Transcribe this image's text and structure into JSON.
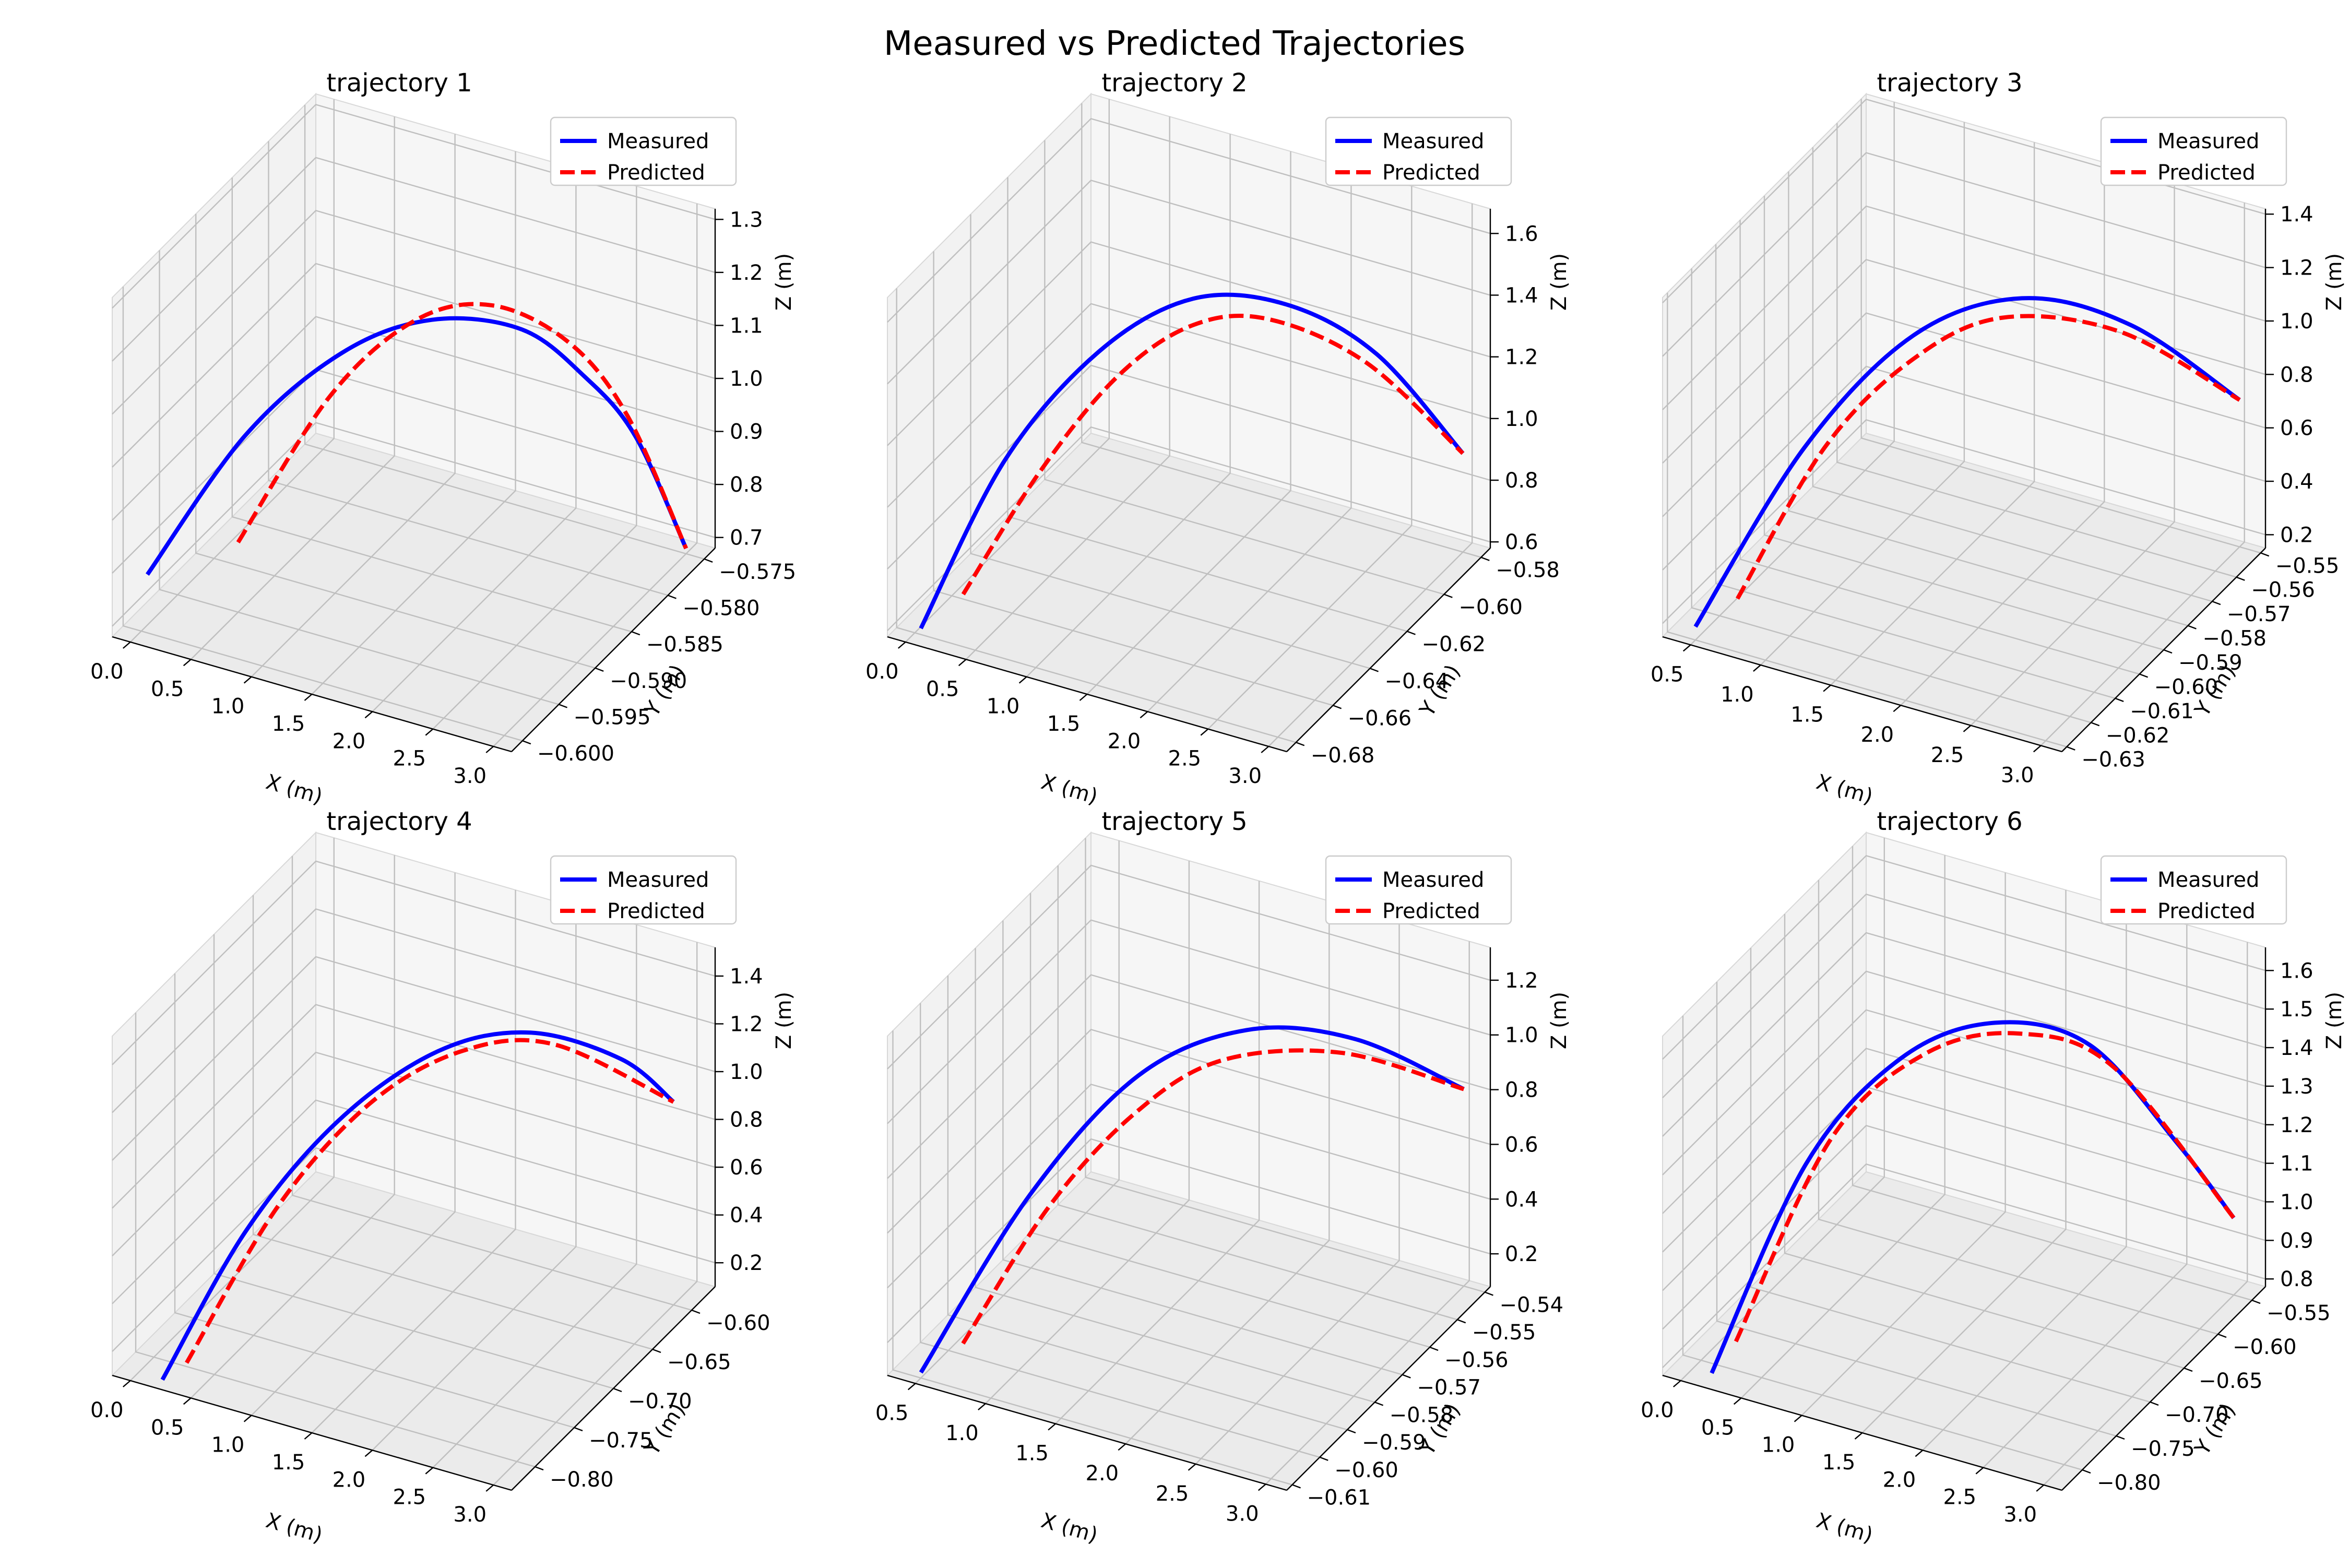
{
  "figure": {
    "title": "Measured vs Predicted Trajectories"
  },
  "colors": {
    "measured": "#0000ff",
    "predicted": "#ff0000",
    "pane": "#f2f2f2",
    "grid": "#bfbfbf"
  },
  "legend": {
    "placement": "upper-right",
    "entries": [
      "Measured",
      "Predicted"
    ]
  },
  "chart_data": [
    {
      "type": "line",
      "title": "trajectory 1",
      "xlabel": "X (m)",
      "ylabel": "Y (m)",
      "zlabel": "Z (m)",
      "xlim": [
        -0.15,
        3.15
      ],
      "ylim": [
        -0.6015,
        -0.5735
      ],
      "zlim": [
        0.68,
        1.32
      ],
      "x_ticks": [
        0.0,
        0.5,
        1.0,
        1.5,
        2.0,
        2.5,
        3.0
      ],
      "x_tick_labels": [
        "0.0",
        "0.5",
        "1.0",
        "1.5",
        "2.0",
        "2.5",
        "3.0"
      ],
      "y_ticks": [
        -0.6,
        -0.595,
        -0.59,
        -0.585,
        -0.58,
        -0.575
      ],
      "y_tick_labels": [
        "−0.600",
        "−0.595",
        "−0.590",
        "−0.585",
        "−0.580",
        "−0.575"
      ],
      "z_ticks": [
        0.7,
        0.8,
        0.9,
        1.0,
        1.1,
        1.2,
        1.3
      ],
      "z_tick_labels": [
        "0.7",
        "0.8",
        "0.9",
        "1.0",
        "1.1",
        "1.2",
        "1.3"
      ],
      "grid": true,
      "series": [
        {
          "name": "Measured",
          "x": [
            0.05,
            0.5,
            1.0,
            1.5,
            2.0,
            2.4,
            2.7,
            3.0
          ],
          "y": [
            -0.6,
            -0.594,
            -0.589,
            -0.585,
            -0.581,
            -0.579,
            -0.577,
            -0.575
          ],
          "z": [
            0.79,
            1.0,
            1.12,
            1.16,
            1.12,
            1.03,
            0.91,
            0.69
          ]
        },
        {
          "name": "Predicted",
          "x": [
            0.8,
            1.2,
            1.6,
            2.0,
            2.4,
            2.7,
            3.0
          ],
          "y": [
            -0.6,
            -0.594,
            -0.589,
            -0.585,
            -0.581,
            -0.578,
            -0.575
          ],
          "z": [
            0.9,
            1.12,
            1.22,
            1.22,
            1.12,
            0.96,
            0.69
          ]
        }
      ]
    },
    {
      "type": "line",
      "title": "trajectory 2",
      "xlabel": "X (m)",
      "ylabel": "Y (m)",
      "zlabel": "Z (m)",
      "xlim": [
        -0.15,
        3.15
      ],
      "ylim": [
        -0.685,
        -0.575
      ],
      "zlim": [
        0.58,
        1.68
      ],
      "x_ticks": [
        0.0,
        0.5,
        1.0,
        1.5,
        2.0,
        2.5,
        3.0
      ],
      "x_tick_labels": [
        "0.0",
        "0.5",
        "1.0",
        "1.5",
        "2.0",
        "2.5",
        "3.0"
      ],
      "y_ticks": [
        -0.68,
        -0.66,
        -0.64,
        -0.62,
        -0.6,
        -0.58
      ],
      "y_tick_labels": [
        "−0.68",
        "−0.66",
        "−0.64",
        "−0.62",
        "−0.60",
        "−0.58"
      ],
      "z_ticks": [
        0.6,
        0.8,
        1.0,
        1.2,
        1.4,
        1.6
      ],
      "z_tick_labels": [
        "0.6",
        "0.8",
        "1.0",
        "1.2",
        "1.4",
        "1.6"
      ],
      "grid": true,
      "series": [
        {
          "name": "Measured",
          "x": [
            0.05,
            0.5,
            1.0,
            1.5,
            2.0,
            2.5,
            3.0
          ],
          "y": [
            -0.68,
            -0.664,
            -0.646,
            -0.628,
            -0.61,
            -0.594,
            -0.58
          ],
          "z": [
            0.6,
            1.1,
            1.4,
            1.52,
            1.45,
            1.25,
            0.9
          ]
        },
        {
          "name": "Predicted",
          "x": [
            0.4,
            0.8,
            1.2,
            1.6,
            2.0,
            2.5,
            3.0
          ],
          "y": [
            -0.68,
            -0.665,
            -0.65,
            -0.636,
            -0.621,
            -0.6,
            -0.58
          ],
          "z": [
            0.75,
            1.1,
            1.36,
            1.49,
            1.47,
            1.26,
            0.9
          ]
        }
      ]
    },
    {
      "type": "line",
      "title": "trajectory 3",
      "xlabel": "X (m)",
      "ylabel": "Y (m)",
      "zlabel": "Z (m)",
      "xlim": [
        0.3,
        3.15
      ],
      "ylim": [
        -0.632,
        -0.548
      ],
      "zlim": [
        0.15,
        1.42
      ],
      "x_ticks": [
        0.5,
        1.0,
        1.5,
        2.0,
        2.5,
        3.0
      ],
      "x_tick_labels": [
        "0.5",
        "1.0",
        "1.5",
        "2.0",
        "2.5",
        "3.0"
      ],
      "y_ticks": [
        -0.63,
        -0.62,
        -0.61,
        -0.6,
        -0.59,
        -0.58,
        -0.57,
        -0.56,
        -0.55
      ],
      "y_tick_labels": [
        "−0.63",
        "−0.62",
        "−0.61",
        "−0.60",
        "−0.59",
        "−0.58",
        "−0.57",
        "−0.56",
        "−0.55"
      ],
      "z_ticks": [
        0.2,
        0.4,
        0.6,
        0.8,
        1.0,
        1.2,
        1.4
      ],
      "z_tick_labels": [
        "0.2",
        "0.4",
        "0.6",
        "0.8",
        "1.0",
        "1.2",
        "1.4"
      ],
      "grid": true,
      "series": [
        {
          "name": "Measured",
          "x": [
            0.5,
            1.0,
            1.5,
            2.0,
            2.5,
            3.0
          ],
          "y": [
            -0.63,
            -0.614,
            -0.598,
            -0.582,
            -0.566,
            -0.55
          ],
          "z": [
            0.2,
            0.8,
            1.15,
            1.22,
            1.05,
            0.7
          ]
        },
        {
          "name": "Predicted",
          "x": [
            0.8,
            1.2,
            1.6,
            2.0,
            2.5,
            3.0
          ],
          "y": [
            -0.63,
            -0.617,
            -0.604,
            -0.59,
            -0.57,
            -0.55
          ],
          "z": [
            0.35,
            0.86,
            1.13,
            1.22,
            1.06,
            0.7
          ]
        }
      ]
    },
    {
      "type": "line",
      "title": "trajectory 4",
      "xlabel": "X (m)",
      "ylabel": "Y (m)",
      "zlabel": "Z (m)",
      "xlim": [
        -0.15,
        3.15
      ],
      "ylim": [
        -0.83,
        -0.57
      ],
      "zlim": [
        0.1,
        1.52
      ],
      "x_ticks": [
        0.0,
        0.5,
        1.0,
        1.5,
        2.0,
        2.5,
        3.0
      ],
      "x_tick_labels": [
        "0.0",
        "0.5",
        "1.0",
        "1.5",
        "2.0",
        "2.5",
        "3.0"
      ],
      "y_ticks": [
        -0.8,
        -0.75,
        -0.7,
        -0.65,
        -0.6
      ],
      "y_tick_labels": [
        "−0.80",
        "−0.75",
        "−0.70",
        "−0.65",
        "−0.60"
      ],
      "z_ticks": [
        0.2,
        0.4,
        0.6,
        0.8,
        1.0,
        1.2,
        1.4
      ],
      "z_tick_labels": [
        "0.2",
        "0.4",
        "0.6",
        "0.8",
        "1.0",
        "1.2",
        "1.4"
      ],
      "grid": true,
      "series": [
        {
          "name": "Measured",
          "x": [
            0.2,
            0.7,
            1.2,
            1.7,
            2.2,
            2.7,
            3.0
          ],
          "y": [
            -0.82,
            -0.79,
            -0.75,
            -0.7,
            -0.66,
            -0.62,
            -0.6
          ],
          "z": [
            0.1,
            0.7,
            1.1,
            1.3,
            1.32,
            1.15,
            0.95
          ]
        },
        {
          "name": "Predicted",
          "x": [
            0.4,
            0.9,
            1.4,
            1.9,
            2.4,
            3.0
          ],
          "y": [
            -0.82,
            -0.78,
            -0.74,
            -0.7,
            -0.66,
            -0.6
          ],
          "z": [
            0.2,
            0.8,
            1.17,
            1.33,
            1.3,
            0.95
          ]
        }
      ]
    },
    {
      "type": "line",
      "title": "trajectory 5",
      "xlabel": "X (m)",
      "ylabel": "Y (m)",
      "zlabel": "Z (m)",
      "xlim": [
        0.3,
        3.15
      ],
      "ylim": [
        -0.612,
        -0.538
      ],
      "zlim": [
        0.08,
        1.32
      ],
      "x_ticks": [
        0.5,
        1.0,
        1.5,
        2.0,
        2.5,
        3.0
      ],
      "x_tick_labels": [
        "0.5",
        "1.0",
        "1.5",
        "2.0",
        "2.5",
        "3.0"
      ],
      "y_ticks": [
        -0.61,
        -0.6,
        -0.59,
        -0.58,
        -0.57,
        -0.56,
        -0.55,
        -0.54
      ],
      "y_tick_labels": [
        "−0.61",
        "−0.60",
        "−0.59",
        "−0.58",
        "−0.57",
        "−0.56",
        "−0.55",
        "−0.54"
      ],
      "z_ticks": [
        0.2,
        0.4,
        0.6,
        0.8,
        1.0,
        1.2
      ],
      "z_tick_labels": [
        "0.2",
        "0.4",
        "0.6",
        "0.8",
        "1.0",
        "1.2"
      ],
      "grid": true,
      "series": [
        {
          "name": "Measured",
          "x": [
            0.5,
            1.0,
            1.5,
            2.0,
            2.5,
            3.0
          ],
          "y": [
            -0.61,
            -0.596,
            -0.582,
            -0.568,
            -0.554,
            -0.54
          ],
          "z": [
            0.1,
            0.68,
            1.05,
            1.15,
            1.05,
            0.8
          ]
        },
        {
          "name": "Predicted",
          "x": [
            0.8,
            1.2,
            1.6,
            2.0,
            2.5,
            3.0
          ],
          "y": [
            -0.61,
            -0.599,
            -0.588,
            -0.577,
            -0.559,
            -0.54
          ],
          "z": [
            0.25,
            0.7,
            0.99,
            1.13,
            1.05,
            0.8
          ]
        }
      ]
    },
    {
      "type": "line",
      "title": "trajectory 6",
      "xlabel": "X (m)",
      "ylabel": "Y (m)",
      "zlabel": "Z (m)",
      "xlim": [
        -0.15,
        3.15
      ],
      "ylim": [
        -0.83,
        -0.53
      ],
      "zlim": [
        0.78,
        1.66
      ],
      "x_ticks": [
        0.0,
        0.5,
        1.0,
        1.5,
        2.0,
        2.5,
        3.0
      ],
      "x_tick_labels": [
        "0.0",
        "0.5",
        "1.0",
        "1.5",
        "2.0",
        "2.5",
        "3.0"
      ],
      "y_ticks": [
        -0.8,
        -0.75,
        -0.7,
        -0.65,
        -0.6,
        -0.55
      ],
      "y_tick_labels": [
        "−0.80",
        "−0.75",
        "−0.70",
        "−0.65",
        "−0.60",
        "−0.55"
      ],
      "z_ticks": [
        0.8,
        0.9,
        1.0,
        1.1,
        1.2,
        1.3,
        1.4,
        1.5,
        1.6
      ],
      "z_tick_labels": [
        "0.8",
        "0.9",
        "1.0",
        "1.1",
        "1.2",
        "1.3",
        "1.4",
        "1.5",
        "1.6"
      ],
      "grid": true,
      "series": [
        {
          "name": "Measured",
          "x": [
            0.2,
            0.7,
            1.2,
            1.7,
            2.2,
            2.7,
            3.0
          ],
          "y": [
            -0.82,
            -0.77,
            -0.72,
            -0.67,
            -0.62,
            -0.58,
            -0.55
          ],
          "z": [
            0.8,
            1.3,
            1.53,
            1.58,
            1.48,
            1.2,
            0.98
          ]
        },
        {
          "name": "Predicted",
          "x": [
            0.4,
            0.9,
            1.4,
            1.9,
            2.4,
            3.0
          ],
          "y": [
            -0.82,
            -0.77,
            -0.72,
            -0.67,
            -0.62,
            -0.55
          ],
          "z": [
            0.9,
            1.38,
            1.56,
            1.57,
            1.44,
            0.98
          ]
        }
      ]
    }
  ]
}
